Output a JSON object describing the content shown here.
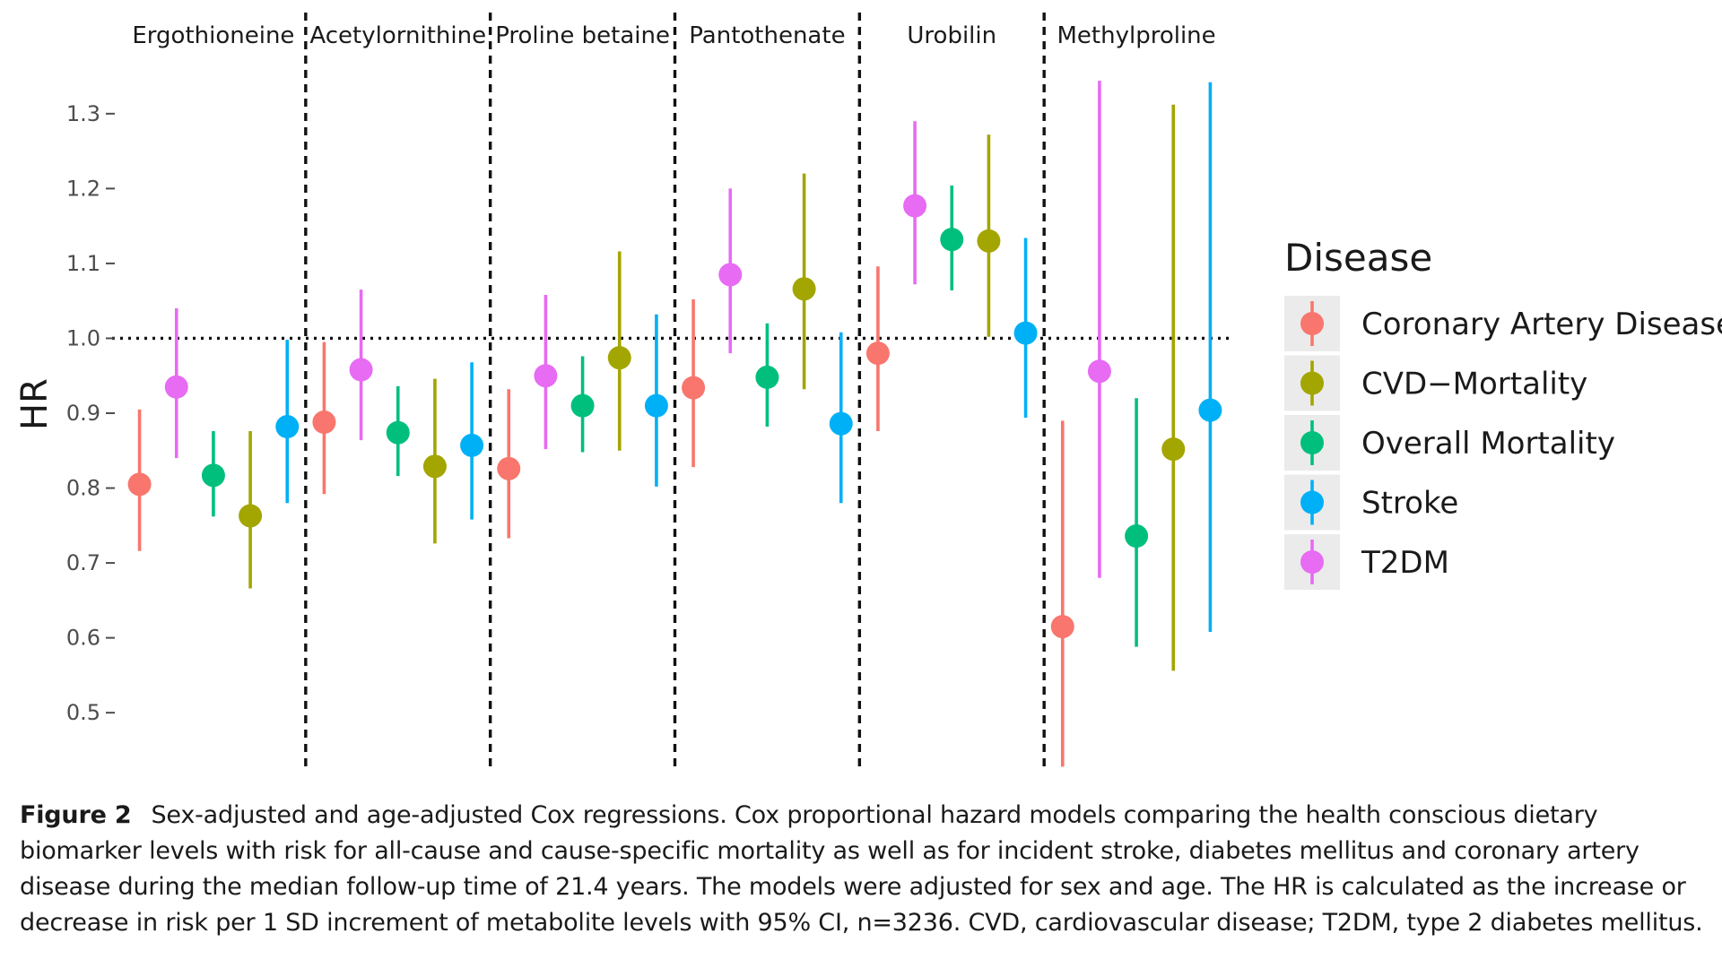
{
  "chart_data": {
    "type": "scatter",
    "subtype": "faceted point-range (hazard ratio with 95% CI)",
    "ylabel": "HR",
    "ylim": [
      0.42,
      1.38
    ],
    "yticks": [
      0.5,
      0.6,
      0.7,
      0.8,
      0.9,
      1.0,
      1.1,
      1.2,
      1.3
    ],
    "ytick_labels": [
      "0.5",
      "0.6",
      "0.7",
      "0.8",
      "0.9",
      "1.0",
      "1.1",
      "1.2",
      "1.3"
    ],
    "reference_line": 1.0,
    "grid": false,
    "legend": {
      "title": "Disease",
      "placement": "right"
    },
    "series": [
      {
        "name": "Coronary Artery Disease",
        "color": "#F8766D"
      },
      {
        "name": "CVD−Mortality",
        "color": "#A3A500"
      },
      {
        "name": "Overall Mortality",
        "color": "#00BF7D"
      },
      {
        "name": "Stroke",
        "color": "#00B0F6"
      },
      {
        "name": "T2DM",
        "color": "#E76BF3"
      }
    ],
    "facets": [
      {
        "name": "Ergothioneine",
        "points": [
          {
            "series": "Coronary Artery Disease",
            "hr": 0.805,
            "lo": 0.716,
            "hi": 0.905
          },
          {
            "series": "T2DM",
            "hr": 0.935,
            "lo": 0.84,
            "hi": 1.04
          },
          {
            "series": "Overall Mortality",
            "hr": 0.817,
            "lo": 0.762,
            "hi": 0.876
          },
          {
            "series": "CVD−Mortality",
            "hr": 0.763,
            "lo": 0.666,
            "hi": 0.876
          },
          {
            "series": "Stroke",
            "hr": 0.882,
            "lo": 0.78,
            "hi": 0.998
          }
        ]
      },
      {
        "name": "Acetylornithine",
        "points": [
          {
            "series": "Coronary Artery Disease",
            "hr": 0.888,
            "lo": 0.792,
            "hi": 0.995
          },
          {
            "series": "T2DM",
            "hr": 0.958,
            "lo": 0.864,
            "hi": 1.065
          },
          {
            "series": "Overall Mortality",
            "hr": 0.874,
            "lo": 0.816,
            "hi": 0.936
          },
          {
            "series": "CVD−Mortality",
            "hr": 0.829,
            "lo": 0.726,
            "hi": 0.946
          },
          {
            "series": "Stroke",
            "hr": 0.857,
            "lo": 0.758,
            "hi": 0.968
          }
        ]
      },
      {
        "name": "Proline betaine",
        "points": [
          {
            "series": "Coronary Artery Disease",
            "hr": 0.826,
            "lo": 0.733,
            "hi": 0.932
          },
          {
            "series": "T2DM",
            "hr": 0.95,
            "lo": 0.852,
            "hi": 1.058
          },
          {
            "series": "Overall Mortality",
            "hr": 0.91,
            "lo": 0.848,
            "hi": 0.976
          },
          {
            "series": "CVD−Mortality",
            "hr": 0.974,
            "lo": 0.85,
            "hi": 1.116
          },
          {
            "series": "Stroke",
            "hr": 0.91,
            "lo": 0.802,
            "hi": 1.032
          }
        ]
      },
      {
        "name": "Pantothenate",
        "points": [
          {
            "series": "Coronary Artery Disease",
            "hr": 0.934,
            "lo": 0.828,
            "hi": 1.052
          },
          {
            "series": "T2DM",
            "hr": 1.085,
            "lo": 0.98,
            "hi": 1.2
          },
          {
            "series": "Overall Mortality",
            "hr": 0.948,
            "lo": 0.882,
            "hi": 1.02
          },
          {
            "series": "CVD−Mortality",
            "hr": 1.066,
            "lo": 0.932,
            "hi": 1.22
          },
          {
            "series": "Stroke",
            "hr": 0.886,
            "lo": 0.78,
            "hi": 1.008
          }
        ]
      },
      {
        "name": "Urobilin",
        "points": [
          {
            "series": "Coronary Artery Disease",
            "hr": 0.98,
            "lo": 0.876,
            "hi": 1.096
          },
          {
            "series": "T2DM",
            "hr": 1.177,
            "lo": 1.072,
            "hi": 1.29
          },
          {
            "series": "Overall Mortality",
            "hr": 1.132,
            "lo": 1.064,
            "hi": 1.204
          },
          {
            "series": "CVD−Mortality",
            "hr": 1.13,
            "lo": 1.002,
            "hi": 1.272
          },
          {
            "series": "Stroke",
            "hr": 1.007,
            "lo": 0.894,
            "hi": 1.134
          }
        ]
      },
      {
        "name": "Methylproline",
        "points": [
          {
            "series": "Coronary Artery Disease",
            "hr": 0.615,
            "lo": 0.428,
            "hi": 0.89
          },
          {
            "series": "T2DM",
            "hr": 0.956,
            "lo": 0.68,
            "hi": 1.344
          },
          {
            "series": "Overall Mortality",
            "hr": 0.736,
            "lo": 0.588,
            "hi": 0.92
          },
          {
            "series": "CVD−Mortality",
            "hr": 0.852,
            "lo": 0.556,
            "hi": 1.312
          },
          {
            "series": "Stroke",
            "hr": 0.904,
            "lo": 0.608,
            "hi": 1.342
          }
        ]
      }
    ]
  },
  "caption": {
    "label": "Figure 2",
    "text": "Sex-adjusted and age-adjusted Cox regressions. Cox proportional hazard models comparing the health conscious dietary biomarker levels with risk for all-cause and cause-specific mortality as well as for incident stroke, diabetes mellitus and coronary artery disease during the median follow-up time of 21.4 years. The models were adjusted for sex and age. The HR is calculated as the increase or decrease in risk per 1 SD increment of metabolite levels with 95% CI, n=3236. CVD, cardiovascular disease; T2DM, type 2 diabetes mellitus."
  }
}
